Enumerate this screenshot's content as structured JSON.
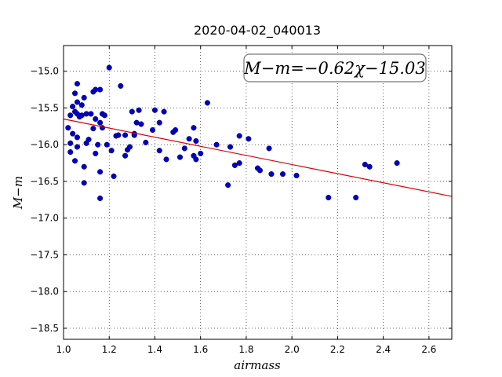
{
  "chart_data": {
    "type": "scatter",
    "title": "2020-04-02_040013",
    "xlabel": "airmass",
    "ylabel": "M−m",
    "xlim": [
      1.0,
      2.7
    ],
    "ylim": [
      -18.65,
      -14.65
    ],
    "x_ticks": [
      1.0,
      1.2,
      1.4,
      1.6,
      1.8,
      2.0,
      2.2,
      2.4,
      2.6
    ],
    "x_tick_labels": [
      "1.0",
      "1.2",
      "1.4",
      "1.6",
      "1.8",
      "2.0",
      "2.2",
      "2.4",
      "2.6"
    ],
    "y_ticks": [
      -15.0,
      -15.5,
      -16.0,
      -16.5,
      -17.0,
      -17.5,
      -18.0,
      -18.5
    ],
    "y_tick_labels": [
      "−15.0",
      "−15.5",
      "−16.0",
      "−16.5",
      "−17.0",
      "−17.5",
      "−18.0",
      "−18.5"
    ],
    "grid": true,
    "point_color": "#0000cc",
    "fit_color": "#dd0000",
    "annotation": "M−m=−0.62χ−15.03",
    "fit": {
      "slope": -0.62,
      "intercept": -15.03
    },
    "points": [
      [
        1.02,
        -15.77
      ],
      [
        1.03,
        -15.6
      ],
      [
        1.04,
        -15.48
      ],
      [
        1.05,
        -15.3
      ],
      [
        1.06,
        -15.17
      ],
      [
        1.06,
        -15.42
      ],
      [
        1.07,
        -15.62
      ],
      [
        1.08,
        -15.46
      ],
      [
        1.09,
        -15.36
      ],
      [
        1.1,
        -15.58
      ],
      [
        1.05,
        -15.55
      ],
      [
        1.06,
        -15.58
      ],
      [
        1.08,
        -15.6
      ],
      [
        1.04,
        -15.85
      ],
      [
        1.06,
        -15.9
      ],
      [
        1.03,
        -15.98
      ],
      [
        1.03,
        -16.1
      ],
      [
        1.05,
        -16.22
      ],
      [
        1.06,
        -16.03
      ],
      [
        1.09,
        -16.3
      ],
      [
        1.09,
        -16.52
      ],
      [
        1.1,
        -15.98
      ],
      [
        1.11,
        -15.93
      ],
      [
        1.12,
        -15.58
      ],
      [
        1.13,
        -15.78
      ],
      [
        1.13,
        -15.28
      ],
      [
        1.14,
        -15.25
      ],
      [
        1.14,
        -15.65
      ],
      [
        1.14,
        -16.12
      ],
      [
        1.15,
        -16.0
      ],
      [
        1.16,
        -15.25
      ],
      [
        1.16,
        -15.7
      ],
      [
        1.17,
        -15.58
      ],
      [
        1.17,
        -15.77
      ],
      [
        1.18,
        -15.6
      ],
      [
        1.16,
        -16.37
      ],
      [
        1.16,
        -16.73
      ],
      [
        1.19,
        -16.0
      ],
      [
        1.2,
        -14.95
      ],
      [
        1.21,
        -16.08
      ],
      [
        1.22,
        -16.43
      ],
      [
        1.23,
        -15.88
      ],
      [
        1.24,
        -15.87
      ],
      [
        1.25,
        -15.2
      ],
      [
        1.27,
        -15.87
      ],
      [
        1.27,
        -16.15
      ],
      [
        1.28,
        -16.07
      ],
      [
        1.29,
        -16.03
      ],
      [
        1.3,
        -15.55
      ],
      [
        1.31,
        -15.87
      ],
      [
        1.31,
        -15.85
      ],
      [
        1.32,
        -15.7
      ],
      [
        1.33,
        -15.53
      ],
      [
        1.34,
        -15.72
      ],
      [
        1.36,
        -15.97
      ],
      [
        1.39,
        -15.8
      ],
      [
        1.4,
        -15.53
      ],
      [
        1.42,
        -15.7
      ],
      [
        1.42,
        -16.08
      ],
      [
        1.44,
        -15.55
      ],
      [
        1.45,
        -16.2
      ],
      [
        1.48,
        -15.83
      ],
      [
        1.49,
        -15.8
      ],
      [
        1.51,
        -16.17
      ],
      [
        1.53,
        -16.05
      ],
      [
        1.55,
        -15.92
      ],
      [
        1.57,
        -15.77
      ],
      [
        1.57,
        -16.15
      ],
      [
        1.58,
        -16.2
      ],
      [
        1.58,
        -15.95
      ],
      [
        1.6,
        -16.12
      ],
      [
        1.63,
        -15.43
      ],
      [
        1.67,
        -16.0
      ],
      [
        1.72,
        -16.55
      ],
      [
        1.73,
        -16.03
      ],
      [
        1.75,
        -16.28
      ],
      [
        1.77,
        -15.88
      ],
      [
        1.77,
        -16.25
      ],
      [
        1.81,
        -15.92
      ],
      [
        1.85,
        -16.32
      ],
      [
        1.86,
        -16.35
      ],
      [
        1.9,
        -16.05
      ],
      [
        1.91,
        -16.4
      ],
      [
        1.96,
        -16.4
      ],
      [
        2.02,
        -16.42
      ],
      [
        2.16,
        -16.72
      ],
      [
        2.28,
        -16.72
      ],
      [
        2.32,
        -16.27
      ],
      [
        2.34,
        -16.3
      ],
      [
        2.46,
        -16.25
      ]
    ]
  }
}
